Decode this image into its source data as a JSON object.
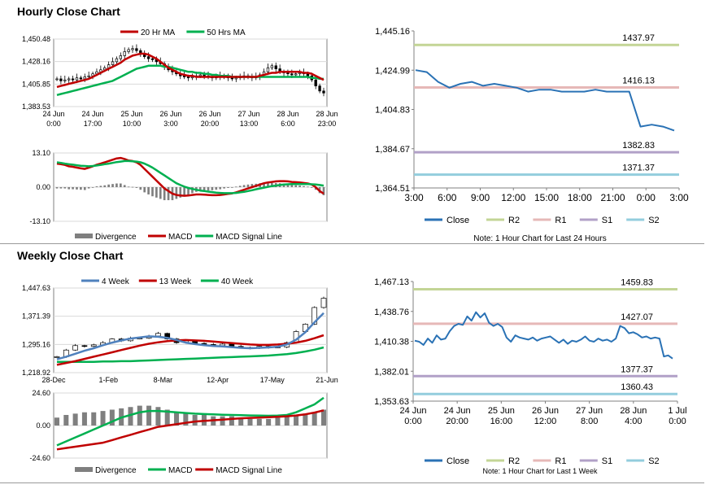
{
  "sections": {
    "hourly_title": "Hourly Close Chart",
    "weekly_title": "Weekly Close Chart"
  },
  "notes": {
    "hourly": "Note: 1 Hour Chart for Last 24 Hours",
    "weekly": "Note: 1 Hour Chart for Last 1 Week"
  },
  "colors": {
    "close": "#2a72b5",
    "r2": "#c3d596",
    "r1": "#e6b8b7",
    "s1": "#b1a0c7",
    "s2": "#93cddd",
    "ma_red": "#c00000",
    "ma_green": "#00b050",
    "ma_blue": "#4f81bd",
    "divergence": "#7f7f7f"
  },
  "chart_data": [
    {
      "id": "hourly_price",
      "type": "candlestick",
      "legend": [
        "20 Hr MA",
        "50 Hrs MA"
      ],
      "y_ticks": [
        "1,450.48",
        "1,428.16",
        "1,405.85",
        "1,383.53"
      ],
      "ylim": [
        1383.53,
        1450.48
      ],
      "x_ticks": [
        [
          "24 Jun",
          "0:00"
        ],
        [
          "24 Jun",
          "17:00"
        ],
        [
          "25 Jun",
          "10:00"
        ],
        [
          "26 Jun",
          "3:00"
        ],
        [
          "26 Jun",
          "20:00"
        ],
        [
          "27 Jun",
          "13:00"
        ],
        [
          "28 Jun",
          "6:00"
        ],
        [
          "28 Jun",
          "23:00"
        ]
      ],
      "close": [
        1411,
        1409,
        1410,
        1411,
        1410,
        1412,
        1411,
        1413,
        1414,
        1416,
        1418,
        1420,
        1422,
        1425,
        1428,
        1431,
        1434,
        1438,
        1440,
        1441,
        1439,
        1436,
        1433,
        1431,
        1430,
        1428,
        1426,
        1423,
        1420,
        1418,
        1416,
        1414,
        1413,
        1412,
        1413,
        1414,
        1415,
        1414,
        1413,
        1412,
        1413,
        1414,
        1413,
        1412,
        1411,
        1412,
        1413,
        1414,
        1413,
        1412,
        1413,
        1415,
        1418,
        1422,
        1424,
        1421,
        1418,
        1417,
        1416,
        1415,
        1416,
        1417,
        1416,
        1414,
        1410,
        1404,
        1399,
        1397
      ],
      "ma20": [
        1403,
        1404,
        1405,
        1406,
        1407,
        1408,
        1409,
        1410,
        1411,
        1413,
        1415,
        1417,
        1419,
        1421,
        1423,
        1425,
        1427,
        1430,
        1432,
        1434,
        1435,
        1436,
        1436,
        1435,
        1433,
        1431,
        1428,
        1425,
        1422,
        1420,
        1418,
        1416,
        1415,
        1414,
        1414,
        1413,
        1413,
        1413,
        1413,
        1413,
        1413,
        1413,
        1413,
        1413,
        1413,
        1413,
        1413,
        1413,
        1413,
        1413,
        1413,
        1414,
        1415,
        1416,
        1417,
        1417,
        1418,
        1418,
        1418,
        1418,
        1418,
        1418,
        1417,
        1417,
        1416,
        1414,
        1412,
        1410
      ],
      "ma50": [
        1395,
        1396,
        1397,
        1398,
        1399,
        1400,
        1401,
        1402,
        1403,
        1404,
        1405,
        1406,
        1407,
        1408,
        1409,
        1411,
        1413,
        1415,
        1417,
        1419,
        1421,
        1422,
        1423,
        1424,
        1424,
        1424,
        1424,
        1423,
        1423,
        1422,
        1421,
        1420,
        1419,
        1418,
        1418,
        1417,
        1417,
        1416,
        1416,
        1415,
        1415,
        1414,
        1414,
        1414,
        1413,
        1413,
        1413,
        1413,
        1413,
        1413,
        1413,
        1413,
        1413,
        1413,
        1413,
        1413,
        1413,
        1413,
        1413,
        1413,
        1413,
        1413,
        1413,
        1413,
        1412,
        1412,
        1411,
        1411
      ]
    },
    {
      "id": "hourly_macd",
      "type": "macd",
      "legend": [
        "Divergence",
        "MACD",
        "MACD Signal Line"
      ],
      "y_ticks": [
        "13.10",
        "0.00",
        "-13.10"
      ],
      "ylim": [
        -13.1,
        13.1
      ],
      "macd": [
        9,
        8.8,
        8.5,
        8,
        7.8,
        7.5,
        7.2,
        7,
        7.5,
        8,
        8.6,
        9,
        9.5,
        10,
        10.5,
        11,
        11.2,
        10.8,
        10.2,
        10,
        9.5,
        8.5,
        7,
        5.5,
        4,
        2.5,
        1,
        -0.5,
        -1.5,
        -2.5,
        -3,
        -3.2,
        -3.3,
        -3.2,
        -3,
        -2.8,
        -2.8,
        -2.9,
        -3,
        -3.1,
        -3.1,
        -3,
        -2.8,
        -2.6,
        -2.4,
        -2,
        -1.5,
        -1,
        -0.5,
        0,
        0.5,
        1,
        1.5,
        1.8,
        2,
        2.2,
        2.3,
        2.3,
        2.2,
        2,
        1.9,
        1.8,
        1.6,
        1.4,
        1,
        0,
        -1.5,
        -2.5
      ],
      "signal": [
        9.5,
        9.3,
        9,
        8.8,
        8.6,
        8.4,
        8.2,
        8.1,
        8,
        8.1,
        8.3,
        8.5,
        8.8,
        9,
        9.3,
        9.6,
        9.8,
        10,
        10,
        9.9,
        9.8,
        9.5,
        9,
        8.3,
        7.5,
        6.5,
        5.5,
        4.5,
        3.5,
        2.5,
        1.5,
        0.8,
        0.2,
        -0.3,
        -0.7,
        -1,
        -1.3,
        -1.5,
        -1.7,
        -1.9,
        -2.1,
        -2.2,
        -2.3,
        -2.3,
        -2.3,
        -2.2,
        -2,
        -1.8,
        -1.5,
        -1.2,
        -0.8,
        -0.5,
        -0.2,
        0.1,
        0.4,
        0.6,
        0.8,
        1,
        1.1,
        1.2,
        1.2,
        1.2,
        1.2,
        1.2,
        1.1,
        1,
        0.8,
        0.6
      ]
    },
    {
      "id": "hourly_levels",
      "type": "line",
      "y_ticks": [
        "1,445.16",
        "1,424.99",
        "1,404.83",
        "1,384.67",
        "1,364.51"
      ],
      "ylim": [
        1364.51,
        1445.16
      ],
      "x_ticks": [
        "3:00",
        "6:00",
        "9:00",
        "12:00",
        "15:00",
        "18:00",
        "21:00",
        "0:00",
        "3:00"
      ],
      "close": [
        1425,
        1424,
        1419,
        1416,
        1418,
        1419,
        1417,
        1418,
        1417,
        1416,
        1414,
        1415,
        1415,
        1414,
        1414,
        1414,
        1415,
        1414,
        1414,
        1414,
        1396,
        1397,
        1396,
        1394
      ],
      "levels": {
        "R2": 1437.97,
        "R1": 1416.13,
        "S1": 1382.83,
        "S2": 1371.37
      },
      "level_labels": [
        "1437.97",
        "1416.13",
        "1382.83",
        "1371.37"
      ],
      "legend": [
        "Close",
        "R2",
        "R1",
        "S1",
        "S2"
      ]
    },
    {
      "id": "weekly_price",
      "type": "candlestick",
      "legend": [
        "4 Week",
        "13 Week",
        "40 Week"
      ],
      "y_ticks": [
        "1,447.63",
        "1,371.39",
        "1,295.16",
        "1,218.92"
      ],
      "ylim": [
        1218.92,
        1447.63
      ],
      "x_ticks": [
        "28-Dec",
        "1-Feb",
        "8-Mar",
        "12-Apr",
        "17-May",
        "21-Jun"
      ],
      "close": [
        1262,
        1280,
        1292,
        1290,
        1294,
        1300,
        1310,
        1305,
        1312,
        1312,
        1318,
        1325,
        1310,
        1300,
        1305,
        1298,
        1295,
        1292,
        1296,
        1290,
        1287,
        1285,
        1290,
        1287,
        1288,
        1300,
        1330,
        1350,
        1395,
        1420
      ],
      "ma4": [
        1255,
        1262,
        1270,
        1278,
        1285,
        1293,
        1300,
        1306,
        1311,
        1314,
        1317,
        1316,
        1313,
        1307,
        1300,
        1296,
        1293,
        1291,
        1290,
        1288,
        1286,
        1285,
        1286,
        1287,
        1289,
        1295,
        1308,
        1328,
        1355,
        1380
      ],
      "ma13": [
        1240,
        1245,
        1250,
        1256,
        1262,
        1268,
        1274,
        1280,
        1286,
        1292,
        1297,
        1301,
        1304,
        1306,
        1307,
        1306,
        1305,
        1303,
        1301,
        1299,
        1297,
        1295,
        1294,
        1294,
        1295,
        1297,
        1300,
        1305,
        1312,
        1320
      ],
      "ma40": [
        1248,
        1248,
        1248,
        1248,
        1248,
        1249,
        1249,
        1250,
        1250,
        1251,
        1252,
        1253,
        1254,
        1255,
        1256,
        1257,
        1258,
        1259,
        1260,
        1261,
        1262,
        1263,
        1264,
        1265,
        1267,
        1269,
        1272,
        1276,
        1281,
        1287
      ]
    },
    {
      "id": "weekly_macd",
      "type": "macd",
      "legend": [
        "Divergence",
        "MACD",
        "MACD Signal Line"
      ],
      "y_ticks": [
        "24.60",
        "0.00",
        "-24.60"
      ],
      "ylim": [
        -24.6,
        24.6
      ],
      "divergence": [
        6,
        8,
        9,
        10,
        10,
        11,
        12,
        13,
        14,
        15,
        15,
        14,
        12,
        10,
        9,
        8,
        8,
        7,
        7,
        7,
        6,
        5,
        5,
        5,
        6,
        7,
        8,
        9,
        10,
        12
      ],
      "macd": [
        -15,
        -12,
        -9,
        -6,
        -3,
        0,
        3,
        6,
        8,
        10,
        11,
        11,
        10.5,
        10,
        9.5,
        9,
        8.7,
        8.4,
        8.2,
        8,
        7.8,
        7.6,
        7.5,
        7.4,
        7.5,
        8,
        10,
        13,
        16,
        21
      ],
      "signal": [
        -18,
        -17,
        -16,
        -15,
        -14,
        -13,
        -11,
        -9,
        -7,
        -5,
        -3,
        -1,
        0,
        1,
        2,
        3,
        3.5,
        4,
        4.5,
        5,
        5.5,
        5.8,
        6,
        6.3,
        6.6,
        7,
        7.6,
        8.5,
        9.8,
        11.5
      ]
    },
    {
      "id": "weekly_levels",
      "type": "line",
      "y_ticks": [
        "1,467.13",
        "1,438.76",
        "1,410.38",
        "1,382.01",
        "1,353.63"
      ],
      "ylim": [
        1353.63,
        1467.13
      ],
      "x_ticks": [
        [
          "24 Jun",
          "0:00"
        ],
        [
          "24 Jun",
          "20:00"
        ],
        [
          "25 Jun",
          "16:00"
        ],
        [
          "26 Jun",
          "12:00"
        ],
        [
          "27 Jun",
          "8:00"
        ],
        [
          "28 Jun",
          "4:00"
        ],
        [
          "1 Jul",
          "0:00"
        ]
      ],
      "close": [
        1411,
        1410,
        1407,
        1413,
        1409,
        1416,
        1412,
        1413,
        1420,
        1425,
        1427,
        1426,
        1434,
        1430,
        1438,
        1433,
        1437,
        1428,
        1425,
        1427,
        1424,
        1414,
        1410,
        1416,
        1414,
        1413,
        1412,
        1414,
        1411,
        1413,
        1414,
        1415,
        1412,
        1409,
        1412,
        1408,
        1411,
        1410,
        1412,
        1415,
        1411,
        1410,
        1413,
        1411,
        1412,
        1410,
        1413,
        1425,
        1423,
        1418,
        1419,
        1417,
        1414,
        1415,
        1413,
        1414,
        1413,
        1396,
        1397,
        1394
      ],
      "levels": {
        "R2": 1459.83,
        "R1": 1427.07,
        "S1": 1377.37,
        "S2": 1360.43
      },
      "level_labels": [
        "1459.83",
        "1427.07",
        "1377.37",
        "1360.43"
      ],
      "legend": [
        "Close",
        "R2",
        "R1",
        "S1",
        "S2"
      ]
    }
  ]
}
